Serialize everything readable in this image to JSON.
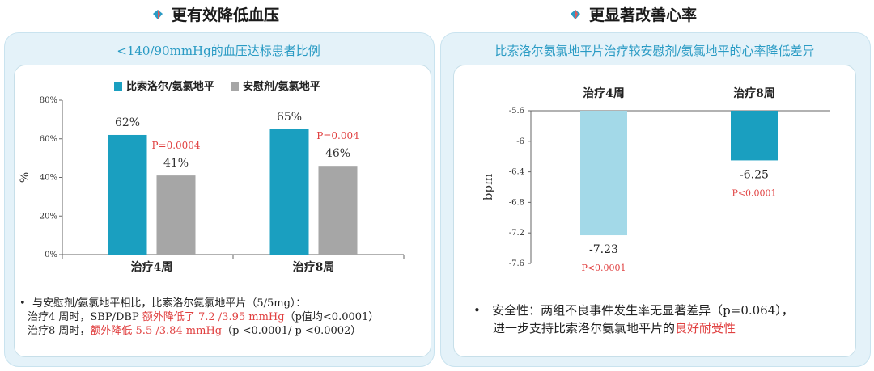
{
  "left": {
    "title": "更有效降低血压",
    "subtitle": "<140/90mmHg的血压达标患者比例",
    "legend": [
      "比索洛尔/氨氯地平",
      "安慰剂/氨氯地平"
    ],
    "notes": {
      "line1": "与安慰剂/氨氯地平相比，比索洛尔氨氯地平片（5/5mg）：",
      "line2_prefix": "治疗4 周时，SBP/DBP ",
      "line2_red": "额外降低了 7.2 /3.95 mmHg",
      "line2_suffix": "（p值均<0.0001）",
      "line3_prefix": "治疗8 周时，",
      "line3_red": "额外降低 5.5 /3.84 mmHg",
      "line3_suffix": "（p <0.0001/ p <0.0002）"
    }
  },
  "right": {
    "title": "更显著改善心率",
    "subtitle": "比索洛尔氨氯地平片治疗较安慰剂/氨氯地平的心率降低差异",
    "notes": {
      "line1": "安全性：两组不良事件发生率无显著差异（p=0.064），",
      "line2_prefix": "进一步支持比索洛尔氨氯地平片的",
      "line2_red": "良好耐受性"
    }
  },
  "colors": {
    "teal": "#1a9fc0",
    "gray": "#a6a6a6",
    "lightblue": "#a3d9e8",
    "red": "#e04040",
    "subtitle": "#2a9bc4"
  },
  "chart_data": [
    {
      "type": "bar",
      "categories": [
        "治疗4周",
        "治疗8周"
      ],
      "series": [
        {
          "name": "比索洛尔/氨氯地平",
          "values": [
            62,
            65
          ],
          "labels": [
            "62%",
            "65%"
          ]
        },
        {
          "name": "安慰剂/氨氯地平",
          "values": [
            41,
            46
          ],
          "labels": [
            "41%",
            "46%"
          ]
        }
      ],
      "pvalues": [
        "P=0.0004",
        "P=0.004"
      ],
      "ylabel": "%",
      "yticks": [
        "0%",
        "20%",
        "40%",
        "60%",
        "80%"
      ],
      "ylim": [
        0,
        80
      ],
      "legend_position": "top"
    },
    {
      "type": "bar",
      "categories": [
        "治疗4周",
        "治疗8周"
      ],
      "values": [
        -7.23,
        -6.25
      ],
      "labels": [
        "-7.23",
        "-6.25"
      ],
      "pvalues": [
        "P<0.0001",
        "P<0.0001"
      ],
      "ylabel": "bpm",
      "yticks": [
        "-5.6",
        "-6",
        "-6.4",
        "-6.8",
        "-7.2",
        "-7.6"
      ],
      "ylim": [
        -7.6,
        -5.6
      ],
      "category_labels_position": "top"
    }
  ]
}
